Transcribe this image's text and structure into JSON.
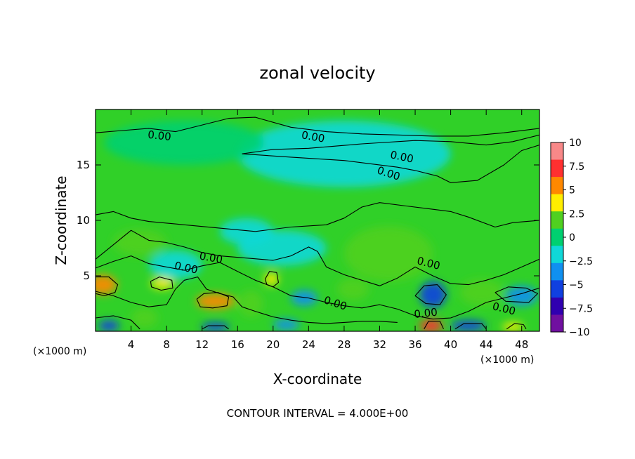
{
  "chart_data": {
    "type": "heatmap",
    "title": "zonal velocity",
    "xlabel": "X-coordinate",
    "ylabel": "Z-coordinate",
    "x_unit": "(×1000 m)",
    "x_unit_right": "(×1000 m)",
    "xlim": [
      0,
      50
    ],
    "ylim": [
      0,
      20
    ],
    "x_ticks": [
      4,
      8,
      12,
      16,
      20,
      24,
      28,
      32,
      36,
      40,
      44,
      48
    ],
    "y_ticks": [
      5,
      10,
      15
    ],
    "footer": "CONTOUR INTERVAL = 4.000E+00",
    "contour_label": "0.00",
    "colorbar": {
      "range": [
        -10,
        10
      ],
      "tick_labels": [
        "10",
        "7.5",
        "5",
        "2.5",
        "0",
        "−2.5",
        "−5",
        "−7.5",
        "−10"
      ],
      "colors": [
        "#f88888",
        "#ff3030",
        "#ff8800",
        "#ffee00",
        "#50d020",
        "#00d070",
        "#10d8d8",
        "#1090f0",
        "#1040e0",
        "#3000b0",
        "#7010a0"
      ]
    },
    "background_color": "#30d028",
    "blobs": [
      {
        "x": 0.8,
        "z": 4.2,
        "rx": 1.6,
        "rz": 0.9,
        "v": 6
      },
      {
        "x": 7.5,
        "z": 4.3,
        "rx": 1.3,
        "rz": 0.5,
        "v": 5
      },
      {
        "x": 13.5,
        "z": 2.7,
        "rx": 2.2,
        "rz": 0.7,
        "v": 7
      },
      {
        "x": 19.8,
        "z": 4.7,
        "rx": 0.8,
        "rz": 0.6,
        "v": 5
      },
      {
        "x": 37.8,
        "z": 0.5,
        "rx": 1.3,
        "rz": 0.6,
        "v": 8
      },
      {
        "x": 47.0,
        "z": 0.4,
        "rx": 1.2,
        "rz": 0.4,
        "v": 5
      },
      {
        "x": 29.0,
        "z": 3.8,
        "rx": 1.8,
        "rz": 1.0,
        "v": 3
      },
      {
        "x": 43.5,
        "z": 3.5,
        "rx": 2.5,
        "rz": 1.2,
        "v": 3
      },
      {
        "x": 5.5,
        "z": 1.2,
        "rx": 1.5,
        "rz": 0.9,
        "v": 2.5
      },
      {
        "x": 17.5,
        "z": 2.5,
        "rx": 1.4,
        "rz": 1.2,
        "v": 2.5
      },
      {
        "x": 1.5,
        "z": 0.5,
        "rx": 1.2,
        "rz": 0.5,
        "v": -5
      },
      {
        "x": 13.5,
        "z": 0.4,
        "rx": 1.6,
        "rz": 0.4,
        "v": -5
      },
      {
        "x": 21.5,
        "z": 0.6,
        "rx": 1.5,
        "rz": 0.5,
        "v": -3
      },
      {
        "x": 38.0,
        "z": 3.3,
        "rx": 1.5,
        "rz": 1.2,
        "v": -5
      },
      {
        "x": 42.0,
        "z": 0.5,
        "rx": 2.0,
        "rz": 0.5,
        "v": -6
      },
      {
        "x": 48.0,
        "z": 3.2,
        "rx": 1.8,
        "rz": 0.9,
        "v": -4
      },
      {
        "x": 23.5,
        "z": 3.0,
        "rx": 1.5,
        "rz": 0.7,
        "v": -3.5
      },
      {
        "x": 17.0,
        "z": 9.0,
        "rx": 3.0,
        "rz": 1.2,
        "v": -2.5
      },
      {
        "x": 21.0,
        "z": 7.5,
        "rx": 5.0,
        "rz": 1.6,
        "v": -1.5
      },
      {
        "x": 9.0,
        "z": 6.0,
        "rx": 3.0,
        "rz": 1.3,
        "v": -1.5
      },
      {
        "x": 5.0,
        "z": 8.0,
        "rx": 3.0,
        "rz": 1.2,
        "v": 1.5
      },
      {
        "x": 33.0,
        "z": 7.0,
        "rx": 5.0,
        "rz": 2.5,
        "v": 1.5
      },
      {
        "x": 28.0,
        "z": 16.0,
        "rx": 12.0,
        "rz": 3.0,
        "v": -1.0
      },
      {
        "x": 10.0,
        "z": 17.0,
        "rx": 9.0,
        "rz": 2.0,
        "v": 0.8
      }
    ],
    "contours": [
      [
        [
          0,
          17.9
        ],
        [
          3,
          18.1
        ],
        [
          6,
          18.3
        ],
        [
          9,
          18.0
        ],
        [
          12,
          18.6
        ],
        [
          15,
          19.2
        ],
        [
          18,
          19.3
        ],
        [
          22,
          18.4
        ],
        [
          26,
          18.0
        ],
        [
          30,
          17.8
        ],
        [
          34,
          17.7
        ],
        [
          38,
          17.6
        ],
        [
          42,
          17.6
        ],
        [
          46,
          17.9
        ],
        [
          50,
          18.3
        ]
      ],
      [
        [
          16.5,
          16.0
        ],
        [
          22,
          15.7
        ],
        [
          28,
          15.4
        ],
        [
          31,
          15.1
        ],
        [
          34,
          14.8
        ],
        [
          36,
          14.5
        ],
        [
          38.5,
          14.0
        ],
        [
          40,
          13.4
        ],
        [
          43,
          13.6
        ],
        [
          46,
          15.0
        ],
        [
          48,
          16.3
        ],
        [
          50,
          16.8
        ]
      ],
      [
        [
          16.5,
          16.0
        ],
        [
          20,
          16.4
        ],
        [
          24,
          16.5
        ],
        [
          30,
          16.9
        ],
        [
          36,
          17.2
        ],
        [
          40,
          17.1
        ],
        [
          44,
          16.8
        ],
        [
          47,
          17.1
        ],
        [
          50,
          17.7
        ]
      ],
      [
        [
          0,
          10.5
        ],
        [
          2,
          10.8
        ],
        [
          4,
          10.2
        ],
        [
          6,
          9.9
        ],
        [
          10,
          9.6
        ],
        [
          14,
          9.3
        ],
        [
          18,
          9.0
        ],
        [
          22,
          9.4
        ],
        [
          26,
          9.6
        ],
        [
          28,
          10.2
        ],
        [
          30,
          11.2
        ],
        [
          32,
          11.6
        ],
        [
          35,
          11.3
        ],
        [
          38,
          11.0
        ],
        [
          40,
          10.8
        ],
        [
          42,
          10.3
        ],
        [
          45,
          9.4
        ],
        [
          47,
          9.8
        ],
        [
          50,
          10.0
        ]
      ],
      [
        [
          0,
          6.5
        ],
        [
          2,
          7.8
        ],
        [
          4,
          9.1
        ],
        [
          6,
          8.2
        ],
        [
          8,
          8.0
        ],
        [
          10,
          7.6
        ],
        [
          12,
          7.1
        ],
        [
          14,
          6.8
        ],
        [
          17,
          6.6
        ],
        [
          20,
          6.4
        ],
        [
          22,
          6.8
        ],
        [
          24,
          7.6
        ],
        [
          25,
          7.2
        ],
        [
          26,
          5.8
        ],
        [
          28,
          5.1
        ],
        [
          30,
          4.6
        ],
        [
          32,
          4.1
        ],
        [
          34,
          4.8
        ],
        [
          36,
          5.8
        ],
        [
          38,
          5.0
        ],
        [
          40,
          4.3
        ],
        [
          42,
          4.2
        ],
        [
          44,
          4.6
        ],
        [
          46,
          5.1
        ],
        [
          48,
          5.8
        ],
        [
          50,
          6.5
        ]
      ],
      [
        [
          0,
          5.7
        ],
        [
          2,
          6.3
        ],
        [
          4,
          6.8
        ],
        [
          6,
          6.1
        ],
        [
          8,
          5.8
        ],
        [
          10,
          5.5
        ],
        [
          12,
          5.9
        ],
        [
          14,
          6.2
        ],
        [
          16,
          5.4
        ],
        [
          18,
          4.6
        ],
        [
          20,
          4.0
        ],
        [
          22,
          3.2
        ],
        [
          24,
          3.0
        ],
        [
          26,
          2.6
        ],
        [
          28,
          2.3
        ],
        [
          30,
          2.1
        ],
        [
          32,
          2.4
        ],
        [
          34,
          2.0
        ],
        [
          36,
          1.4
        ],
        [
          38,
          1.1
        ],
        [
          40,
          1.2
        ],
        [
          42,
          1.8
        ],
        [
          44,
          2.6
        ],
        [
          46,
          3.0
        ],
        [
          48,
          3.4
        ],
        [
          50,
          3.9
        ]
      ],
      [
        [
          0,
          3.6
        ],
        [
          2,
          3.2
        ],
        [
          4,
          2.6
        ],
        [
          6,
          2.2
        ],
        [
          8,
          2.4
        ],
        [
          9,
          3.8
        ],
        [
          10,
          4.6
        ],
        [
          11.5,
          4.9
        ],
        [
          12.5,
          3.8
        ],
        [
          14,
          3.4
        ],
        [
          15.5,
          3.1
        ],
        [
          16.5,
          2.2
        ],
        [
          18,
          1.8
        ],
        [
          20,
          1.3
        ],
        [
          22,
          1.0
        ],
        [
          24,
          0.8
        ],
        [
          26,
          0.7
        ],
        [
          28,
          0.8
        ],
        [
          30,
          0.9
        ],
        [
          32,
          0.9
        ],
        [
          34,
          0.8
        ]
      ],
      [
        [
          0,
          1.2
        ],
        [
          2,
          1.4
        ],
        [
          4,
          1.0
        ],
        [
          5,
          0.2
        ]
      ],
      [
        [
          36,
          3.2
        ],
        [
          37,
          4.1
        ],
        [
          38.5,
          4.2
        ],
        [
          39.5,
          3.3
        ],
        [
          38.8,
          2.4
        ],
        [
          37.2,
          2.5
        ],
        [
          36,
          3.2
        ]
      ],
      [
        [
          45,
          3.5
        ],
        [
          46.5,
          4.0
        ],
        [
          48.5,
          3.9
        ],
        [
          49.8,
          3.4
        ],
        [
          48.8,
          2.6
        ],
        [
          46.2,
          2.7
        ],
        [
          45,
          3.5
        ]
      ],
      [
        [
          0,
          4.9
        ],
        [
          1.5,
          4.9
        ],
        [
          2.5,
          4.2
        ],
        [
          2.2,
          3.5
        ],
        [
          1,
          3.2
        ],
        [
          0,
          3.4
        ]
      ],
      [
        [
          6.2,
          4.5
        ],
        [
          7.2,
          4.9
        ],
        [
          8.6,
          4.6
        ],
        [
          8.7,
          3.9
        ],
        [
          7.4,
          3.7
        ],
        [
          6.3,
          4.0
        ],
        [
          6.2,
          4.5
        ]
      ],
      [
        [
          11.4,
          2.9
        ],
        [
          12.2,
          3.4
        ],
        [
          13.8,
          3.5
        ],
        [
          15.0,
          3.1
        ],
        [
          14.8,
          2.3
        ],
        [
          13.2,
          2.1
        ],
        [
          11.8,
          2.2
        ],
        [
          11.4,
          2.9
        ]
      ],
      [
        [
          19.1,
          4.7
        ],
        [
          19.6,
          5.4
        ],
        [
          20.4,
          5.3
        ],
        [
          20.6,
          4.4
        ],
        [
          20.0,
          4.0
        ],
        [
          19.3,
          4.2
        ],
        [
          19.1,
          4.7
        ]
      ],
      [
        [
          37.0,
          0.2
        ],
        [
          37.5,
          0.9
        ],
        [
          38.8,
          0.9
        ],
        [
          39.2,
          0.2
        ]
      ],
      [
        [
          40.5,
          0.2
        ],
        [
          41.5,
          0.7
        ],
        [
          43.5,
          0.7
        ],
        [
          44.0,
          0.2
        ]
      ],
      [
        [
          46.3,
          0.2
        ],
        [
          47.2,
          0.7
        ],
        [
          48.2,
          0.6
        ],
        [
          48.5,
          0.2
        ]
      ],
      [
        [
          12.0,
          0.2
        ],
        [
          12.7,
          0.5
        ],
        [
          14.5,
          0.5
        ],
        [
          15.0,
          0.2
        ]
      ]
    ],
    "contour_labels": [
      {
        "x": 7.2,
        "z": 17.6,
        "angle": 6
      },
      {
        "x": 24.5,
        "z": 17.5,
        "angle": 10
      },
      {
        "x": 34.5,
        "z": 15.7,
        "angle": 12
      },
      {
        "x": 33.0,
        "z": 14.2,
        "angle": 18
      },
      {
        "x": 13.0,
        "z": 6.6,
        "angle": 10
      },
      {
        "x": 10.2,
        "z": 5.7,
        "angle": 12
      },
      {
        "x": 37.5,
        "z": 6.1,
        "angle": 14
      },
      {
        "x": 27.0,
        "z": 2.5,
        "angle": 18
      },
      {
        "x": 37.2,
        "z": 1.6,
        "angle": -6
      },
      {
        "x": 46.0,
        "z": 2.0,
        "angle": 14
      }
    ]
  }
}
